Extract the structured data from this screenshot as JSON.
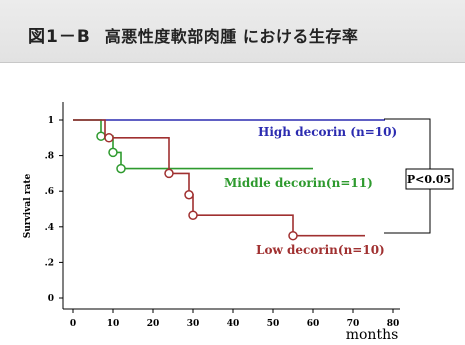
{
  "header": {
    "figure_label": "図1－B",
    "caption": "高悪性度軟部肉腫 における生存率"
  },
  "chart_data": {
    "type": "line",
    "subtype": "kaplan-meier-step",
    "xlabel": "months",
    "ylabel": "Survival rate",
    "xlim": [
      0,
      80
    ],
    "ylim": [
      0,
      1
    ],
    "x_ticks": [
      0,
      10,
      20,
      30,
      40,
      50,
      60,
      70,
      80
    ],
    "y_ticks": [
      {
        "value": 0,
        "label": "0"
      },
      {
        "value": 0.2,
        "label": ".2"
      },
      {
        "value": 0.4,
        "label": ".4"
      },
      {
        "value": 0.6,
        "label": ".6"
      },
      {
        "value": 0.8,
        "label": ".8"
      },
      {
        "value": 1,
        "label": "1"
      }
    ],
    "grid": false,
    "series": [
      {
        "name": "High decorin (n=10)",
        "color": "#2b2bb0",
        "steps": [
          [
            0,
            1.0
          ],
          [
            78,
            1.0
          ]
        ],
        "censored": []
      },
      {
        "name": "Middle decorin(n=11)",
        "color": "#2e9a2e",
        "steps": [
          [
            0,
            1.0
          ],
          [
            7,
            1.0
          ],
          [
            7,
            0.909
          ],
          [
            10,
            0.909
          ],
          [
            10,
            0.818
          ],
          [
            12,
            0.818
          ],
          [
            12,
            0.727
          ],
          [
            60,
            0.727
          ]
        ],
        "censored": [
          [
            7,
            0.909
          ],
          [
            10,
            0.818
          ],
          [
            12,
            0.727
          ]
        ]
      },
      {
        "name": "Low decorin(n=10)",
        "color": "#a03030",
        "steps": [
          [
            0,
            1.0
          ],
          [
            8,
            1.0
          ],
          [
            8,
            0.9
          ],
          [
            24,
            0.9
          ],
          [
            24,
            0.7
          ],
          [
            29,
            0.7
          ],
          [
            29,
            0.58
          ],
          [
            30,
            0.58
          ],
          [
            30,
            0.465
          ],
          [
            55,
            0.465
          ],
          [
            55,
            0.35
          ],
          [
            73,
            0.35
          ]
        ],
        "censored": [
          [
            9,
            0.9
          ],
          [
            24,
            0.7
          ],
          [
            29,
            0.58
          ],
          [
            30,
            0.465
          ],
          [
            55,
            0.35
          ]
        ]
      }
    ],
    "annotation": {
      "text": "P<0.05"
    }
  }
}
